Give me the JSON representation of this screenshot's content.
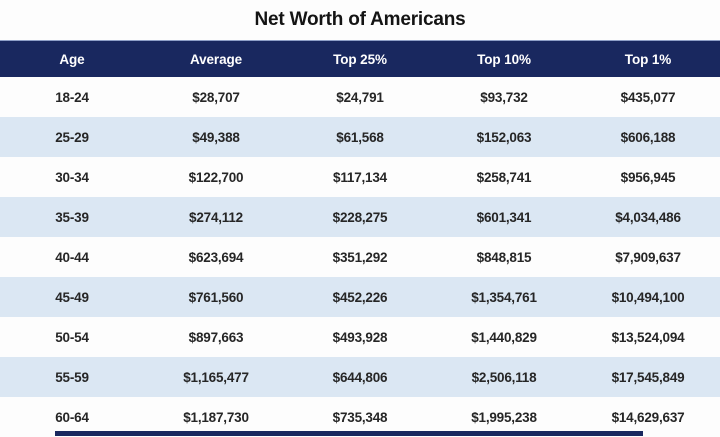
{
  "title": "Net Worth of Americans",
  "colors": {
    "header_navy": "#19285f",
    "stripe_blue": "#dbe7f3",
    "row_white": "#fdfdfd",
    "header_text": "#ffffff",
    "body_text": "#262626"
  },
  "chart_data": {
    "type": "table",
    "title": "Net Worth of Americans",
    "columns": [
      "Age",
      "Average",
      "Top 25%",
      "Top 10%",
      "Top 1%"
    ],
    "rows": [
      [
        "18-24",
        "$28,707",
        "$24,791",
        "$93,732",
        "$435,077"
      ],
      [
        "25-29",
        "$49,388",
        "$61,568",
        "$152,063",
        "$606,188"
      ],
      [
        "30-34",
        "$122,700",
        "$117,134",
        "$258,741",
        "$956,945"
      ],
      [
        "35-39",
        "$274,112",
        "$228,275",
        "$601,341",
        "$4,034,486"
      ],
      [
        "40-44",
        "$623,694",
        "$351,292",
        "$848,815",
        "$7,909,637"
      ],
      [
        "45-49",
        "$761,560",
        "$452,226",
        "$1,354,761",
        "$10,494,100"
      ],
      [
        "50-54",
        "$897,663",
        "$493,928",
        "$1,440,829",
        "$13,524,094"
      ],
      [
        "55-59",
        "$1,165,477",
        "$644,806",
        "$2,506,118",
        "$17,545,849"
      ],
      [
        "60-64",
        "$1,187,730",
        "$735,348",
        "$1,995,238",
        "$14,629,637"
      ]
    ],
    "layout": {
      "row_striping": "alternating white / light blue",
      "alignment": "all cells centered",
      "columns_equal_width": true
    }
  }
}
